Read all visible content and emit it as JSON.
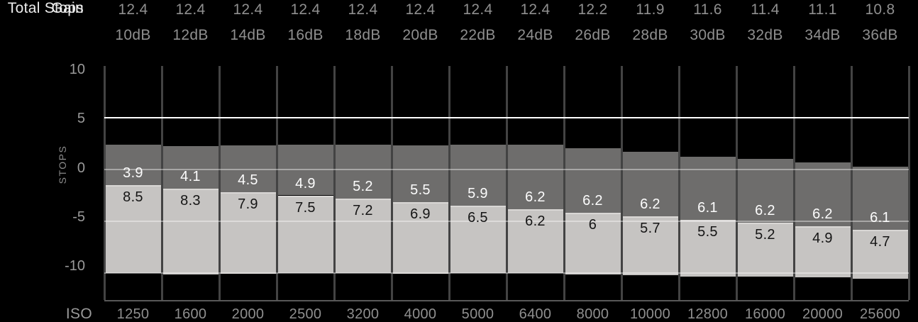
{
  "labels": {
    "total_stops": "Total Stops",
    "gain": "Gain",
    "iso": "ISO",
    "y_axis_title": "STOPS"
  },
  "y_axis": {
    "ticks": [
      "10",
      "5",
      "0",
      "-5",
      "-10"
    ]
  },
  "colors": {
    "background": "#000000",
    "dark_bar": "#6e6d6c",
    "light_bar": "#c6c4c2",
    "light_bar_top_edge": "#d9d7d5",
    "gridline_highlight": "#ffffff",
    "gridline_minor": "rgba(255,255,255,0.4)",
    "column_line": "#434343",
    "axis_line": "#585858",
    "header_text": "#ececec",
    "value_text": "#8f8f8f",
    "tick_text": "#9a9a9a",
    "bar_label_on_dark": "#fcfcfc",
    "bar_label_on_light": "#151515"
  },
  "chart_data": {
    "type": "bar",
    "stacked": true,
    "ylabel": "STOPS",
    "ylim": [
      -12.7,
      10
    ],
    "grid": {
      "highlight_line_at": 5,
      "minor_lines_at": [
        0,
        -5,
        -10
      ]
    },
    "series": [
      {
        "name": "stops_above_middle_gray",
        "values": [
          3.9,
          4.1,
          4.5,
          4.9,
          5.2,
          5.5,
          5.9,
          6.2,
          6.2,
          6.2,
          6.1,
          6.2,
          6.2,
          6.1
        ]
      },
      {
        "name": "stops_below_middle_gray",
        "values": [
          8.5,
          8.3,
          7.9,
          7.5,
          7.2,
          6.9,
          6.5,
          6.2,
          6.0,
          5.7,
          5.5,
          5.2,
          4.9,
          4.7
        ]
      }
    ],
    "columns": [
      {
        "iso": "1250",
        "gain": "10dB",
        "total_stops": "12.4",
        "stops_above": "3.9",
        "stops_below": "8.5"
      },
      {
        "iso": "1600",
        "gain": "12dB",
        "total_stops": "12.4",
        "stops_above": "4.1",
        "stops_below": "8.3"
      },
      {
        "iso": "2000",
        "gain": "14dB",
        "total_stops": "12.4",
        "stops_above": "4.5",
        "stops_below": "7.9"
      },
      {
        "iso": "2500",
        "gain": "16dB",
        "total_stops": "12.4",
        "stops_above": "4.9",
        "stops_below": "7.5"
      },
      {
        "iso": "3200",
        "gain": "18dB",
        "total_stops": "12.4",
        "stops_above": "5.2",
        "stops_below": "7.2"
      },
      {
        "iso": "4000",
        "gain": "20dB",
        "total_stops": "12.4",
        "stops_above": "5.5",
        "stops_below": "6.9"
      },
      {
        "iso": "5000",
        "gain": "22dB",
        "total_stops": "12.4",
        "stops_above": "5.9",
        "stops_below": "6.5"
      },
      {
        "iso": "6400",
        "gain": "24dB",
        "total_stops": "12.4",
        "stops_above": "6.2",
        "stops_below": "6.2"
      },
      {
        "iso": "8000",
        "gain": "26dB",
        "total_stops": "12.2",
        "stops_above": "6.2",
        "stops_below": "6"
      },
      {
        "iso": "10000",
        "gain": "28dB",
        "total_stops": "11.9",
        "stops_above": "6.2",
        "stops_below": "5.7"
      },
      {
        "iso": "12800",
        "gain": "30dB",
        "total_stops": "11.6",
        "stops_above": "6.1",
        "stops_below": "5.5"
      },
      {
        "iso": "16000",
        "gain": "32dB",
        "total_stops": "11.4",
        "stops_above": "6.2",
        "stops_below": "5.2"
      },
      {
        "iso": "20000",
        "gain": "34dB",
        "total_stops": "11.1",
        "stops_above": "6.2",
        "stops_below": "4.9"
      },
      {
        "iso": "25600",
        "gain": "36dB",
        "total_stops": "10.8",
        "stops_above": "6.1",
        "stops_below": "4.7"
      }
    ]
  }
}
